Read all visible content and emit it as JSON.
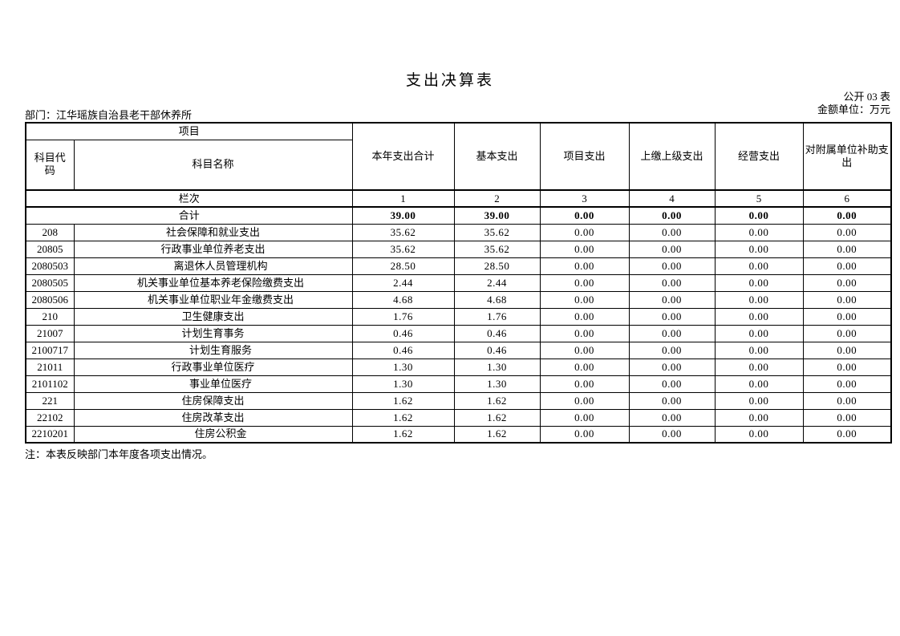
{
  "page": {
    "title": "支出决算表",
    "meta_line1": "公开 03 表",
    "meta_line2": "金额单位：万元",
    "department": "部门：江华瑶族自治县老干部休养所",
    "note": "注：本表反映部门本年度各项支出情况。"
  },
  "table": {
    "header": {
      "group_label": "项目",
      "code_label": "科目代码",
      "name_label": "科目名称",
      "columns": [
        "本年支出合计",
        "基本支出",
        "项目支出",
        "上缴上级支出",
        "经营支出",
        "对附属单位补助支出"
      ],
      "lanci_label": "栏次",
      "column_numbers": [
        "1",
        "2",
        "3",
        "4",
        "5",
        "6"
      ]
    },
    "total_row": {
      "label": "合计",
      "values": [
        "39.00",
        "39.00",
        "0.00",
        "0.00",
        "0.00",
        "0.00"
      ]
    },
    "rows": [
      {
        "code": "208",
        "name": "社会保障和就业支出",
        "indent": 0,
        "values": [
          "35.62",
          "35.62",
          "0.00",
          "0.00",
          "0.00",
          "0.00"
        ]
      },
      {
        "code": "20805",
        "name": "行政事业单位养老支出",
        "indent": 0,
        "values": [
          "35.62",
          "35.62",
          "0.00",
          "0.00",
          "0.00",
          "0.00"
        ]
      },
      {
        "code": "2080503",
        "name": "离退休人员管理机构",
        "indent": 1,
        "values": [
          "28.50",
          "28.50",
          "0.00",
          "0.00",
          "0.00",
          "0.00"
        ]
      },
      {
        "code": "2080505",
        "name": "机关事业单位基本养老保险缴费支出",
        "indent": 1,
        "values": [
          "2.44",
          "2.44",
          "0.00",
          "0.00",
          "0.00",
          "0.00"
        ]
      },
      {
        "code": "2080506",
        "name": "机关事业单位职业年金缴费支出",
        "indent": 1,
        "values": [
          "4.68",
          "4.68",
          "0.00",
          "0.00",
          "0.00",
          "0.00"
        ]
      },
      {
        "code": "210",
        "name": "卫生健康支出",
        "indent": 0,
        "values": [
          "1.76",
          "1.76",
          "0.00",
          "0.00",
          "0.00",
          "0.00"
        ]
      },
      {
        "code": "21007",
        "name": "计划生育事务",
        "indent": 0,
        "values": [
          "0.46",
          "0.46",
          "0.00",
          "0.00",
          "0.00",
          "0.00"
        ]
      },
      {
        "code": "2100717",
        "name": "计划生育服务",
        "indent": 1,
        "values": [
          "0.46",
          "0.46",
          "0.00",
          "0.00",
          "0.00",
          "0.00"
        ]
      },
      {
        "code": "21011",
        "name": "行政事业单位医疗",
        "indent": 0,
        "values": [
          "1.30",
          "1.30",
          "0.00",
          "0.00",
          "0.00",
          "0.00"
        ]
      },
      {
        "code": "2101102",
        "name": "事业单位医疗",
        "indent": 1,
        "values": [
          "1.30",
          "1.30",
          "0.00",
          "0.00",
          "0.00",
          "0.00"
        ]
      },
      {
        "code": "221",
        "name": "住房保障支出",
        "indent": 0,
        "values": [
          "1.62",
          "1.62",
          "0.00",
          "0.00",
          "0.00",
          "0.00"
        ]
      },
      {
        "code": "22102",
        "name": "住房改革支出",
        "indent": 0,
        "values": [
          "1.62",
          "1.62",
          "0.00",
          "0.00",
          "0.00",
          "0.00"
        ]
      },
      {
        "code": "2210201",
        "name": "住房公积金",
        "indent": 1,
        "values": [
          "1.62",
          "1.62",
          "0.00",
          "0.00",
          "0.00",
          "0.00"
        ]
      }
    ]
  }
}
